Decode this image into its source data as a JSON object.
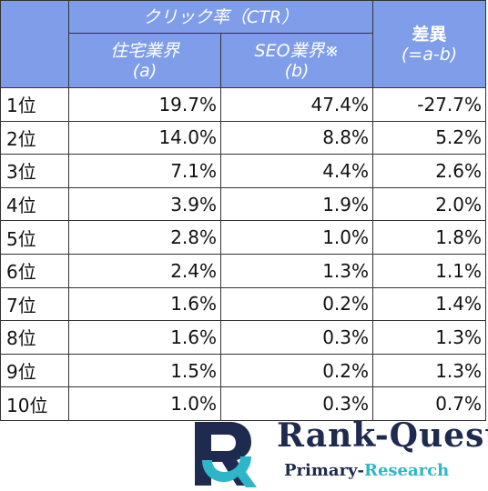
{
  "table": {
    "header": {
      "group_label": "クリック率（CTR）",
      "col_a": "住宅業界",
      "col_a_sub": "(a)",
      "col_b": "SEO業界※",
      "col_b_sub": "(b)",
      "col_diff": "差異",
      "col_diff_sub": "(=a-b)"
    },
    "rows": [
      {
        "rank": "1位",
        "a": "19.7%",
        "b": "47.4%",
        "diff": "-27.7%"
      },
      {
        "rank": "2位",
        "a": "14.0%",
        "b": "8.8%",
        "diff": "5.2%"
      },
      {
        "rank": "3位",
        "a": "7.1%",
        "b": "4.4%",
        "diff": "2.6%"
      },
      {
        "rank": "4位",
        "a": "3.9%",
        "b": "1.9%",
        "diff": "2.0%"
      },
      {
        "rank": "5位",
        "a": "2.8%",
        "b": "1.0%",
        "diff": "1.8%"
      },
      {
        "rank": "6位",
        "a": "2.4%",
        "b": "1.3%",
        "diff": "1.1%"
      },
      {
        "rank": "7位",
        "a": "1.6%",
        "b": "0.2%",
        "diff": "1.4%"
      },
      {
        "rank": "8位",
        "a": "1.6%",
        "b": "0.3%",
        "diff": "1.3%"
      },
      {
        "rank": "9位",
        "a": "1.5%",
        "b": "0.2%",
        "diff": "1.3%"
      },
      {
        "rank": "10位",
        "a": "1.0%",
        "b": "0.3%",
        "diff": "0.7%"
      }
    ]
  },
  "logo": {
    "icon": "rq-logo-icon",
    "title": "Rank-Quest",
    "sub_part1": "Primary-",
    "sub_part2": "Research",
    "colors": {
      "navy": "#1e2b4f",
      "teal": "#2eb6c8",
      "header_blue": "#7f9de9"
    }
  }
}
